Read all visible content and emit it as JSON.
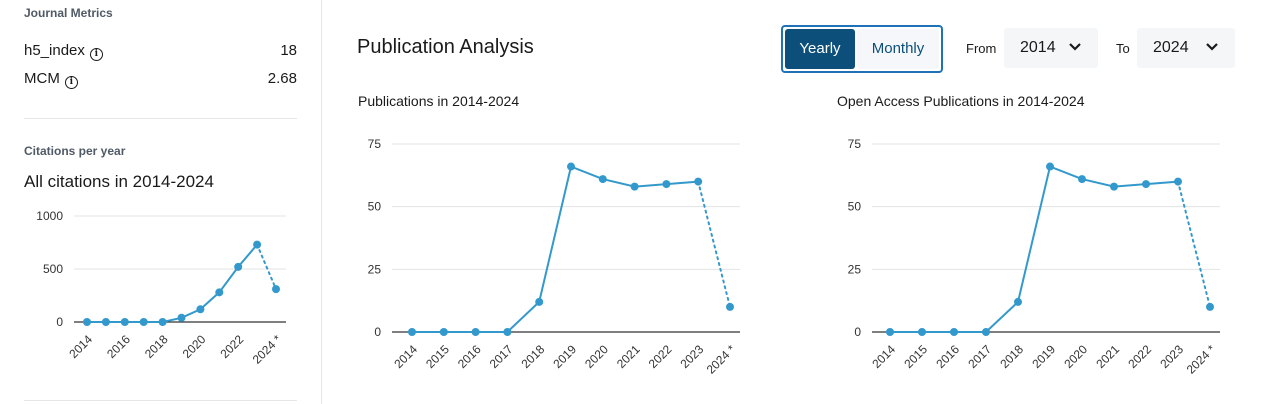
{
  "sidebar": {
    "journal_metrics_label": "Journal Metrics",
    "metrics": [
      {
        "name": "h5_index",
        "value": "18"
      },
      {
        "name": "MCM",
        "value": "2.68"
      }
    ],
    "info_glyph": "i",
    "citations_label": "Citations per year",
    "citations_title": "All citations in 2014-2024"
  },
  "header": {
    "title": "Publication Analysis",
    "toggle": {
      "yearly": "Yearly",
      "monthly": "Monthly",
      "selected": "Yearly"
    },
    "from_label": "From",
    "from_value": "2014",
    "to_label": "To",
    "to_value": "2024"
  },
  "colors": {
    "accent": "#3399cc",
    "toggle_active": "#0b4f7a",
    "toggle_border": "#1f72b8"
  },
  "chart_data": [
    {
      "type": "line",
      "title": "All citations in 2014-2024",
      "x": [
        "2014",
        "2015",
        "2016",
        "2017",
        "2018",
        "2019",
        "2020",
        "2021",
        "2022",
        "2023",
        "2024 *"
      ],
      "x_tick_labels": [
        "2014",
        "2016",
        "2018",
        "2020",
        "2022",
        "2024 *"
      ],
      "values": [
        0,
        0,
        0,
        0,
        0,
        40,
        120,
        280,
        520,
        730,
        310
      ],
      "y_ticks": [
        0,
        500,
        1000
      ],
      "ylim": [
        0,
        1000
      ],
      "projected_last_point": true,
      "grid": true
    },
    {
      "type": "line",
      "title": "Publications in 2014-2024",
      "x": [
        "2014",
        "2015",
        "2016",
        "2017",
        "2018",
        "2019",
        "2020",
        "2021",
        "2022",
        "2023",
        "2024 *"
      ],
      "x_tick_labels": [
        "2014",
        "2015",
        "2016",
        "2017",
        "2018",
        "2019",
        "2020",
        "2021",
        "2022",
        "2023",
        "2024 *"
      ],
      "values": [
        0,
        0,
        0,
        0,
        12,
        66,
        61,
        58,
        59,
        60,
        10
      ],
      "y_ticks": [
        0,
        25,
        50,
        75
      ],
      "ylim": [
        0,
        75
      ],
      "projected_last_point": true,
      "grid": true
    },
    {
      "type": "line",
      "title": "Open Access Publications in 2014-2024",
      "x": [
        "2014",
        "2015",
        "2016",
        "2017",
        "2018",
        "2019",
        "2020",
        "2021",
        "2022",
        "2023",
        "2024 *"
      ],
      "x_tick_labels": [
        "2014",
        "2015",
        "2016",
        "2017",
        "2018",
        "2019",
        "2020",
        "2021",
        "2022",
        "2023",
        "2024 *"
      ],
      "values": [
        0,
        0,
        0,
        0,
        12,
        66,
        61,
        58,
        59,
        60,
        10
      ],
      "y_ticks": [
        0,
        25,
        50,
        75
      ],
      "ylim": [
        0,
        75
      ],
      "projected_last_point": true,
      "grid": true
    }
  ]
}
